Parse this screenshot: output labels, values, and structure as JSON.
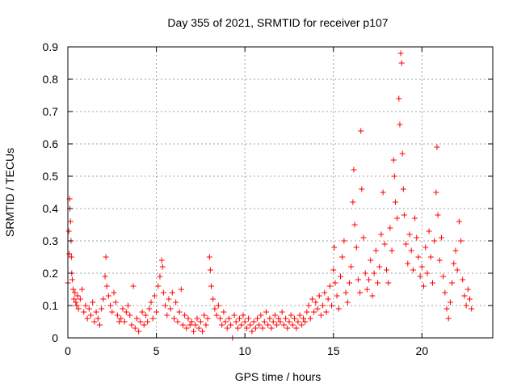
{
  "chart_data": {
    "type": "scatter",
    "title": "Day 355 of 2021, SRMTID for receiver p107",
    "xlabel": "GPS time / hours",
    "ylabel": "SRMTID / TECUs",
    "xlim": [
      0,
      24
    ],
    "ylim": [
      0,
      0.9
    ],
    "xticks": [
      0,
      5,
      10,
      15,
      20
    ],
    "xtick_labels": [
      "0",
      "5",
      "10",
      "15",
      "20"
    ],
    "yticks": [
      0,
      0.1,
      0.2,
      0.3,
      0.4,
      0.5,
      0.6,
      0.7,
      0.8,
      0.9
    ],
    "ytick_labels": [
      "0",
      "0.1",
      "0.2",
      "0.3",
      "0.4",
      "0.5",
      "0.6",
      "0.7",
      "0.8",
      "0.9"
    ],
    "grid": true,
    "marker": "plus",
    "marker_color": "#ff0000",
    "series": [
      {
        "name": "SRMTID",
        "points": [
          [
            0.0,
            0.17
          ],
          [
            0.05,
            0.33
          ],
          [
            0.08,
            0.26
          ],
          [
            0.1,
            0.43
          ],
          [
            0.12,
            0.4
          ],
          [
            0.15,
            0.36
          ],
          [
            0.18,
            0.3
          ],
          [
            0.2,
            0.25
          ],
          [
            0.22,
            0.2
          ],
          [
            0.25,
            0.18
          ],
          [
            0.3,
            0.15
          ],
          [
            0.35,
            0.12
          ],
          [
            0.4,
            0.14
          ],
          [
            0.45,
            0.11
          ],
          [
            0.5,
            0.1
          ],
          [
            0.55,
            0.13
          ],
          [
            0.6,
            0.09
          ],
          [
            0.7,
            0.12
          ],
          [
            0.8,
            0.15
          ],
          [
            0.9,
            0.08
          ],
          [
            1.0,
            0.1
          ],
          [
            1.1,
            0.06
          ],
          [
            1.2,
            0.09
          ],
          [
            1.3,
            0.07
          ],
          [
            1.4,
            0.11
          ],
          [
            1.5,
            0.05
          ],
          [
            1.6,
            0.08
          ],
          [
            1.7,
            0.06
          ],
          [
            1.8,
            0.04
          ],
          [
            1.9,
            0.09
          ],
          [
            2.0,
            0.12
          ],
          [
            2.1,
            0.19
          ],
          [
            2.15,
            0.25
          ],
          [
            2.2,
            0.16
          ],
          [
            2.3,
            0.13
          ],
          [
            2.4,
            0.1
          ],
          [
            2.5,
            0.08
          ],
          [
            2.6,
            0.14
          ],
          [
            2.7,
            0.11
          ],
          [
            2.8,
            0.07
          ],
          [
            2.9,
            0.05
          ],
          [
            3.0,
            0.06
          ],
          [
            3.1,
            0.09
          ],
          [
            3.2,
            0.05
          ],
          [
            3.3,
            0.08
          ],
          [
            3.4,
            0.1
          ],
          [
            3.5,
            0.07
          ],
          [
            3.6,
            0.04
          ],
          [
            3.7,
            0.16
          ],
          [
            3.8,
            0.03
          ],
          [
            3.9,
            0.06
          ],
          [
            4.0,
            0.02
          ],
          [
            4.1,
            0.05
          ],
          [
            4.2,
            0.08
          ],
          [
            4.3,
            0.04
          ],
          [
            4.4,
            0.07
          ],
          [
            4.5,
            0.05
          ],
          [
            4.6,
            0.09
          ],
          [
            4.7,
            0.11
          ],
          [
            4.8,
            0.06
          ],
          [
            4.9,
            0.13
          ],
          [
            5.0,
            0.08
          ],
          [
            5.1,
            0.16
          ],
          [
            5.2,
            0.19
          ],
          [
            5.3,
            0.24
          ],
          [
            5.35,
            0.22
          ],
          [
            5.4,
            0.14
          ],
          [
            5.5,
            0.1
          ],
          [
            5.6,
            0.07
          ],
          [
            5.7,
            0.12
          ],
          [
            5.8,
            0.09
          ],
          [
            5.9,
            0.14
          ],
          [
            6.0,
            0.06
          ],
          [
            6.1,
            0.11
          ],
          [
            6.2,
            0.05
          ],
          [
            6.3,
            0.08
          ],
          [
            6.4,
            0.15
          ],
          [
            6.5,
            0.04
          ],
          [
            6.6,
            0.07
          ],
          [
            6.7,
            0.03
          ],
          [
            6.8,
            0.06
          ],
          [
            6.9,
            0.04
          ],
          [
            7.0,
            0.05
          ],
          [
            7.1,
            0.02
          ],
          [
            7.2,
            0.04
          ],
          [
            7.3,
            0.06
          ],
          [
            7.4,
            0.03
          ],
          [
            7.5,
            0.05
          ],
          [
            7.6,
            0.02
          ],
          [
            7.7,
            0.07
          ],
          [
            7.8,
            0.04
          ],
          [
            7.9,
            0.06
          ],
          [
            8.0,
            0.25
          ],
          [
            8.05,
            0.21
          ],
          [
            8.1,
            0.16
          ],
          [
            8.2,
            0.12
          ],
          [
            8.3,
            0.09
          ],
          [
            8.4,
            0.07
          ],
          [
            8.5,
            0.1
          ],
          [
            8.6,
            0.06
          ],
          [
            8.7,
            0.04
          ],
          [
            8.8,
            0.08
          ],
          [
            8.9,
            0.05
          ],
          [
            9.0,
            0.03
          ],
          [
            9.1,
            0.06
          ],
          [
            9.2,
            0.04
          ],
          [
            9.3,
            0.0
          ],
          [
            9.4,
            0.07
          ],
          [
            9.5,
            0.05
          ],
          [
            9.6,
            0.03
          ],
          [
            9.7,
            0.06
          ],
          [
            9.8,
            0.04
          ],
          [
            9.9,
            0.07
          ],
          [
            10.0,
            0.05
          ],
          [
            10.1,
            0.03
          ],
          [
            10.2,
            0.06
          ],
          [
            10.3,
            0.04
          ],
          [
            10.4,
            0.02
          ],
          [
            10.5,
            0.05
          ],
          [
            10.6,
            0.03
          ],
          [
            10.7,
            0.06
          ],
          [
            10.8,
            0.04
          ],
          [
            10.9,
            0.07
          ],
          [
            11.0,
            0.03
          ],
          [
            11.1,
            0.05
          ],
          [
            11.2,
            0.08
          ],
          [
            11.3,
            0.04
          ],
          [
            11.4,
            0.06
          ],
          [
            11.5,
            0.03
          ],
          [
            11.6,
            0.05
          ],
          [
            11.7,
            0.07
          ],
          [
            11.8,
            0.04
          ],
          [
            11.9,
            0.06
          ],
          [
            12.0,
            0.05
          ],
          [
            12.1,
            0.08
          ],
          [
            12.2,
            0.04
          ],
          [
            12.3,
            0.06
          ],
          [
            12.4,
            0.03
          ],
          [
            12.5,
            0.05
          ],
          [
            12.6,
            0.07
          ],
          [
            12.7,
            0.04
          ],
          [
            12.8,
            0.06
          ],
          [
            12.9,
            0.03
          ],
          [
            13.0,
            0.05
          ],
          [
            13.1,
            0.07
          ],
          [
            13.2,
            0.04
          ],
          [
            13.3,
            0.06
          ],
          [
            13.4,
            0.05
          ],
          [
            13.5,
            0.08
          ],
          [
            13.6,
            0.1
          ],
          [
            13.7,
            0.06
          ],
          [
            13.8,
            0.12
          ],
          [
            13.9,
            0.08
          ],
          [
            14.0,
            0.11
          ],
          [
            14.1,
            0.09
          ],
          [
            14.2,
            0.13
          ],
          [
            14.3,
            0.07
          ],
          [
            14.4,
            0.1
          ],
          [
            14.5,
            0.14
          ],
          [
            14.6,
            0.08
          ],
          [
            14.7,
            0.12
          ],
          [
            14.8,
            0.16
          ],
          [
            14.9,
            0.1
          ],
          [
            15.0,
            0.21
          ],
          [
            15.05,
            0.28
          ],
          [
            15.1,
            0.17
          ],
          [
            15.2,
            0.13
          ],
          [
            15.3,
            0.09
          ],
          [
            15.4,
            0.19
          ],
          [
            15.5,
            0.25
          ],
          [
            15.6,
            0.3
          ],
          [
            15.7,
            0.14
          ],
          [
            15.8,
            0.11
          ],
          [
            15.9,
            0.17
          ],
          [
            16.0,
            0.22
          ],
          [
            16.1,
            0.42
          ],
          [
            16.15,
            0.52
          ],
          [
            16.2,
            0.35
          ],
          [
            16.3,
            0.28
          ],
          [
            16.4,
            0.18
          ],
          [
            16.5,
            0.14
          ],
          [
            16.55,
            0.64
          ],
          [
            16.6,
            0.46
          ],
          [
            16.7,
            0.31
          ],
          [
            16.8,
            0.2
          ],
          [
            16.9,
            0.15
          ],
          [
            17.0,
            0.18
          ],
          [
            17.1,
            0.24
          ],
          [
            17.2,
            0.13
          ],
          [
            17.3,
            0.2
          ],
          [
            17.4,
            0.27
          ],
          [
            17.5,
            0.17
          ],
          [
            17.6,
            0.22
          ],
          [
            17.7,
            0.32
          ],
          [
            17.8,
            0.45
          ],
          [
            17.9,
            0.29
          ],
          [
            18.0,
            0.21
          ],
          [
            18.1,
            0.17
          ],
          [
            18.2,
            0.34
          ],
          [
            18.3,
            0.27
          ],
          [
            18.4,
            0.55
          ],
          [
            18.45,
            0.5
          ],
          [
            18.5,
            0.42
          ],
          [
            18.6,
            0.37
          ],
          [
            18.7,
            0.74
          ],
          [
            18.75,
            0.66
          ],
          [
            18.8,
            0.88
          ],
          [
            18.85,
            0.85
          ],
          [
            18.9,
            0.57
          ],
          [
            18.95,
            0.46
          ],
          [
            19.0,
            0.38
          ],
          [
            19.1,
            0.29
          ],
          [
            19.2,
            0.23
          ],
          [
            19.3,
            0.32
          ],
          [
            19.4,
            0.27
          ],
          [
            19.5,
            0.21
          ],
          [
            19.6,
            0.37
          ],
          [
            19.7,
            0.31
          ],
          [
            19.8,
            0.25
          ],
          [
            19.9,
            0.19
          ],
          [
            20.0,
            0.22
          ],
          [
            20.1,
            0.16
          ],
          [
            20.2,
            0.28
          ],
          [
            20.3,
            0.2
          ],
          [
            20.4,
            0.33
          ],
          [
            20.5,
            0.25
          ],
          [
            20.6,
            0.17
          ],
          [
            20.7,
            0.3
          ],
          [
            20.8,
            0.45
          ],
          [
            20.85,
            0.59
          ],
          [
            20.9,
            0.38
          ],
          [
            21.0,
            0.24
          ],
          [
            21.1,
            0.31
          ],
          [
            21.2,
            0.19
          ],
          [
            21.3,
            0.14
          ],
          [
            21.4,
            0.09
          ],
          [
            21.5,
            0.06
          ],
          [
            21.6,
            0.11
          ],
          [
            21.7,
            0.17
          ],
          [
            21.8,
            0.23
          ],
          [
            21.9,
            0.27
          ],
          [
            22.0,
            0.21
          ],
          [
            22.1,
            0.36
          ],
          [
            22.2,
            0.3
          ],
          [
            22.3,
            0.18
          ],
          [
            22.4,
            0.13
          ],
          [
            22.5,
            0.1
          ],
          [
            22.6,
            0.15
          ],
          [
            22.7,
            0.12
          ],
          [
            22.8,
            0.09
          ]
        ]
      }
    ]
  }
}
